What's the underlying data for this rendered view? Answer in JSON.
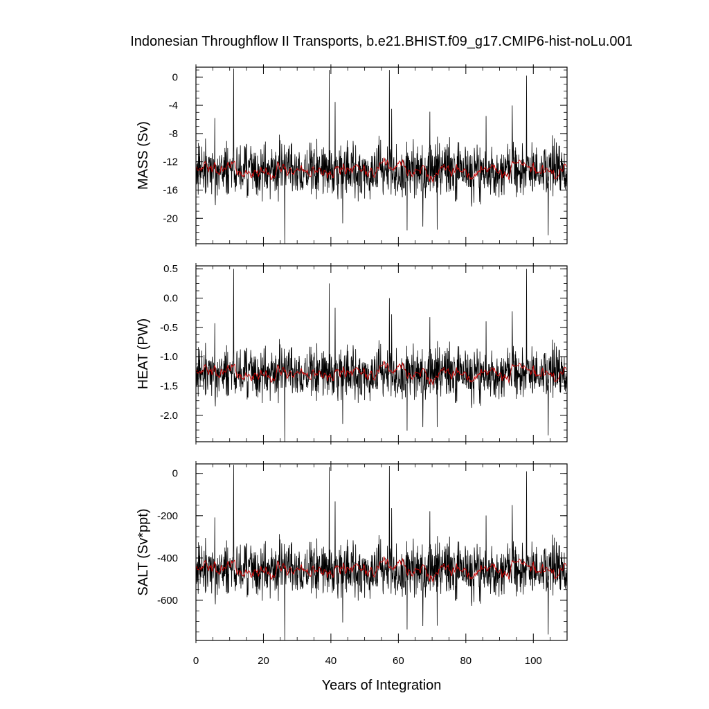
{
  "figure": {
    "title": "Indonesian Throughflow II Transports, b.e21.BHIST.f09_g17.CMIP6-hist-noLu.001",
    "xlabel": "Years of Integration",
    "colors": {
      "monthly": "#000000",
      "smoothed": "#d00000",
      "frame": "#000000"
    }
  },
  "chart_data": [
    {
      "type": "line",
      "title": "",
      "ylabel": "MASS (Sv)",
      "xlabel": "Years of Integration",
      "xlim": [
        0,
        110
      ],
      "ylim": [
        -23.6,
        1.4
      ],
      "x_ticks": [
        0,
        20,
        40,
        60,
        80,
        100
      ],
      "y_ticks": [
        0,
        -4,
        -8,
        -12,
        -16,
        -20
      ],
      "y_tick_labels": [
        "0",
        "-4",
        "-8",
        "-12",
        "-16",
        "-20"
      ],
      "grid": false,
      "series": [
        {
          "role": "monthly",
          "color": "#000000",
          "mean": -13.2,
          "amp": 3.3,
          "spikes": [
            [
              11.2,
              1.2
            ],
            [
              26.3,
              -23.6
            ],
            [
              39.5,
              1.0
            ],
            [
              57.3,
              1.0
            ],
            [
              71.5,
              -21.6
            ],
            [
              98,
              0.2
            ]
          ]
        },
        {
          "role": "smoothed",
          "color": "#d00000",
          "mean": -13.2,
          "amp": 1.1,
          "spikes": []
        }
      ]
    },
    {
      "type": "line",
      "title": "",
      "ylabel": "HEAT (PW)",
      "xlabel": "Years of Integration",
      "xlim": [
        0,
        110
      ],
      "ylim": [
        -2.45,
        0.55
      ],
      "x_ticks": [
        0,
        20,
        40,
        60,
        80,
        100
      ],
      "y_ticks": [
        0.5,
        0.0,
        -0.5,
        -1.0,
        -1.5,
        -2.0
      ],
      "y_tick_labels": [
        "0.5",
        "0.0",
        "-0.5",
        "-1.0",
        "-1.5",
        "-2.0"
      ],
      "grid": false,
      "series": [
        {
          "role": "monthly",
          "color": "#000000",
          "mean": -1.28,
          "amp": 0.38,
          "spikes": [
            [
              11.2,
              0.5
            ],
            [
              26.3,
              -2.45
            ],
            [
              39.5,
              0.25
            ],
            [
              57.3,
              0.0
            ],
            [
              71.5,
              -2.2
            ],
            [
              98,
              0.5
            ]
          ]
        },
        {
          "role": "smoothed",
          "color": "#d00000",
          "mean": -1.28,
          "amp": 0.13,
          "spikes": []
        }
      ]
    },
    {
      "type": "line",
      "title": "",
      "ylabel": "SALT (Sv*ppt)",
      "xlabel": "Years of Integration",
      "xlim": [
        0,
        110
      ],
      "ylim": [
        -790,
        45
      ],
      "x_ticks": [
        0,
        20,
        40,
        60,
        80,
        100
      ],
      "y_ticks": [
        0,
        -200,
        -400,
        -600
      ],
      "y_tick_labels": [
        "0",
        "-200",
        "-400",
        "-600"
      ],
      "x_tick_labels": [
        "0",
        "20",
        "40",
        "60",
        "80",
        "100"
      ],
      "grid": false,
      "series": [
        {
          "role": "monthly",
          "color": "#000000",
          "mean": -455,
          "amp": 110,
          "spikes": [
            [
              11.2,
              40
            ],
            [
              26.3,
              -790
            ],
            [
              39.5,
              30
            ],
            [
              57.3,
              35
            ],
            [
              71.5,
              -720
            ],
            [
              98,
              10
            ]
          ]
        },
        {
          "role": "smoothed",
          "color": "#d00000",
          "mean": -455,
          "amp": 38,
          "spikes": []
        }
      ]
    }
  ]
}
